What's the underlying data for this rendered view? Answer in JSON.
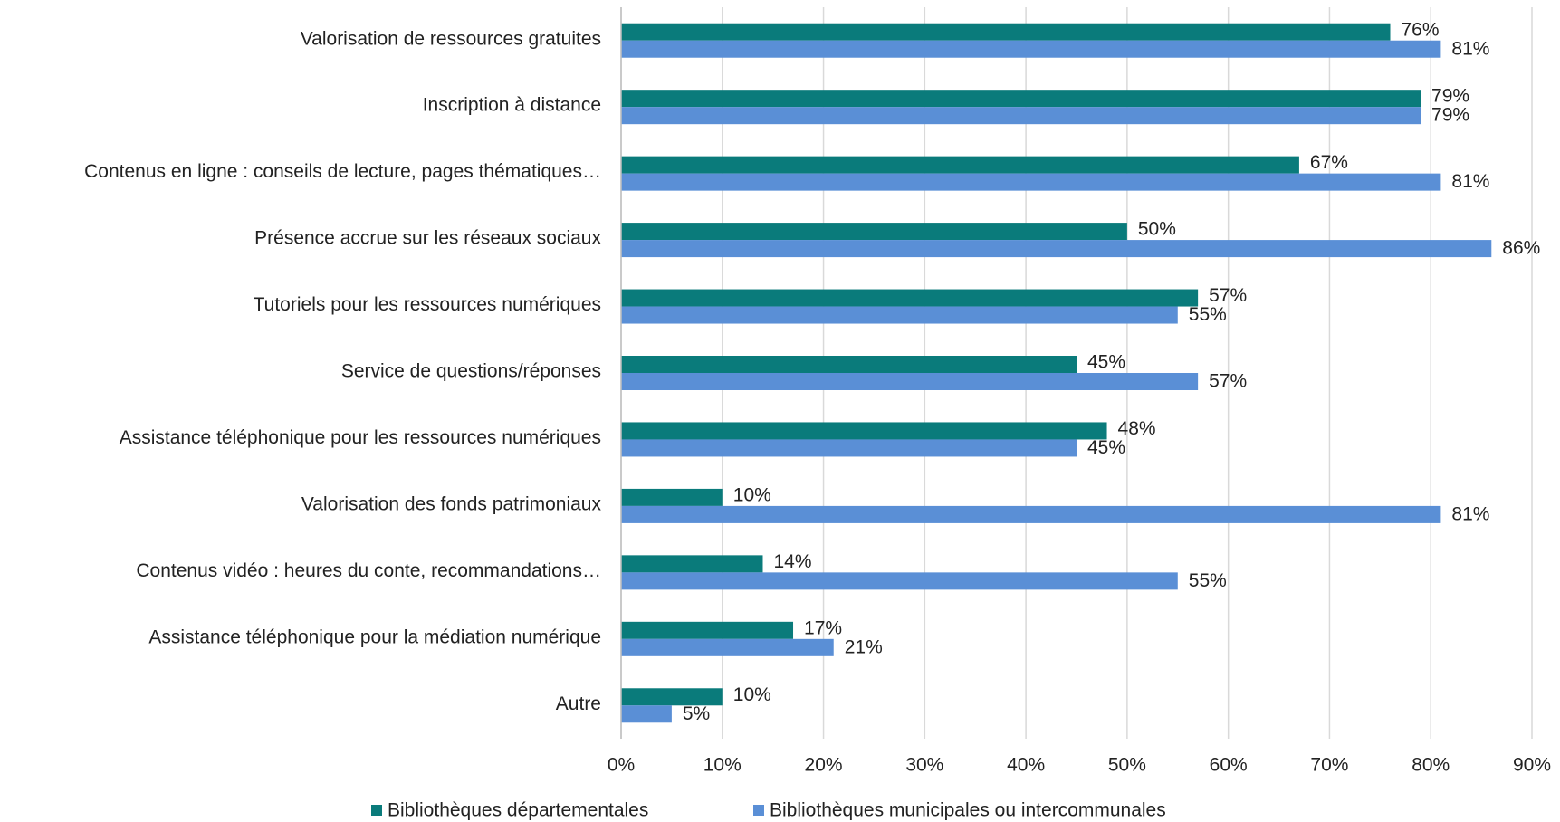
{
  "chart_data": {
    "type": "bar",
    "orientation": "horizontal",
    "categories": [
      "Valorisation de ressources gratuites",
      "Inscription à distance",
      "Contenus en ligne : conseils de lecture, pages thématiques…",
      "Présence accrue sur les réseaux sociaux",
      "Tutoriels pour les ressources numériques",
      "Service de questions/réponses",
      "Assistance téléphonique pour les ressources numériques",
      "Valorisation des fonds patrimoniaux",
      "Contenus vidéo : heures du conte, recommandations…",
      "Assistance téléphonique pour la médiation numérique",
      "Autre"
    ],
    "series": [
      {
        "name": "Bibliothèques départementales",
        "color": "#0a7b7b",
        "values": [
          76,
          79,
          67,
          50,
          57,
          45,
          48,
          10,
          14,
          17,
          10
        ],
        "value_labels": [
          "76%",
          "79%",
          "67%",
          "50%",
          "57%",
          "45%",
          "48%",
          "10%",
          "14%",
          "17%",
          "10%"
        ]
      },
      {
        "name": "Bibliothèques municipales ou intercommunales",
        "color": "#5a8fd6",
        "values": [
          81,
          79,
          81,
          86,
          55,
          57,
          45,
          81,
          55,
          21,
          5
        ],
        "value_labels": [
          "81%",
          "79%",
          "81%",
          "86%",
          "55%",
          "57%",
          "45%",
          "81%",
          "55%",
          "21%",
          "5%"
        ]
      }
    ],
    "xlim": [
      0,
      90
    ],
    "xticks": [
      {
        "value": 0,
        "label": "0%"
      },
      {
        "value": 10,
        "label": "10%"
      },
      {
        "value": 20,
        "label": "20%"
      },
      {
        "value": 30,
        "label": "30%"
      },
      {
        "value": 40,
        "label": "40%"
      },
      {
        "value": 50,
        "label": "50%"
      },
      {
        "value": 60,
        "label": "60%"
      },
      {
        "value": 70,
        "label": "70%"
      },
      {
        "value": 80,
        "label": "80%"
      },
      {
        "value": 90,
        "label": "90%"
      }
    ],
    "grid": true,
    "legend": "bottom"
  }
}
